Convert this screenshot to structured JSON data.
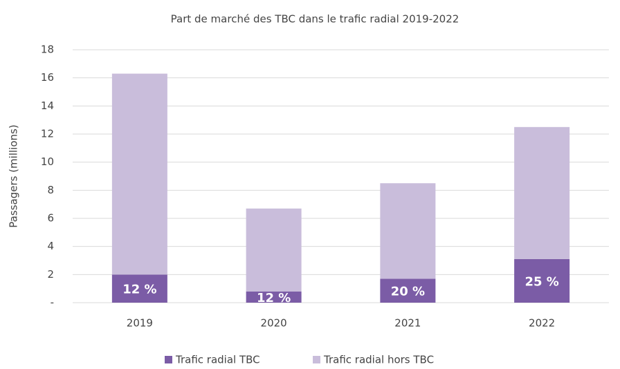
{
  "chart_data": {
    "type": "stacked_bar",
    "title": "Part de marché des TBC dans le trafic radial 2019-2022",
    "y_label": "Passagers (millions)",
    "categories": [
      "2019",
      "2020",
      "2021",
      "2022"
    ],
    "series": [
      {
        "name": "Trafic radial TBC",
        "color": "#7b5ca6",
        "values": [
          2.0,
          0.8,
          1.7,
          3.1
        ],
        "data_labels": [
          "12 %",
          "12 %",
          "20 %",
          "25 %"
        ]
      },
      {
        "name": "Trafic radial hors TBC",
        "color": "#c9bddb",
        "values": [
          14.3,
          5.9,
          6.8,
          9.4
        ]
      }
    ],
    "ylim": [
      0,
      18
    ],
    "yticks": [
      {
        "value": 0,
        "label": "-"
      },
      2,
      4,
      6,
      8,
      10,
      12,
      14,
      16,
      18
    ],
    "grid": true,
    "legend": "bottom"
  }
}
